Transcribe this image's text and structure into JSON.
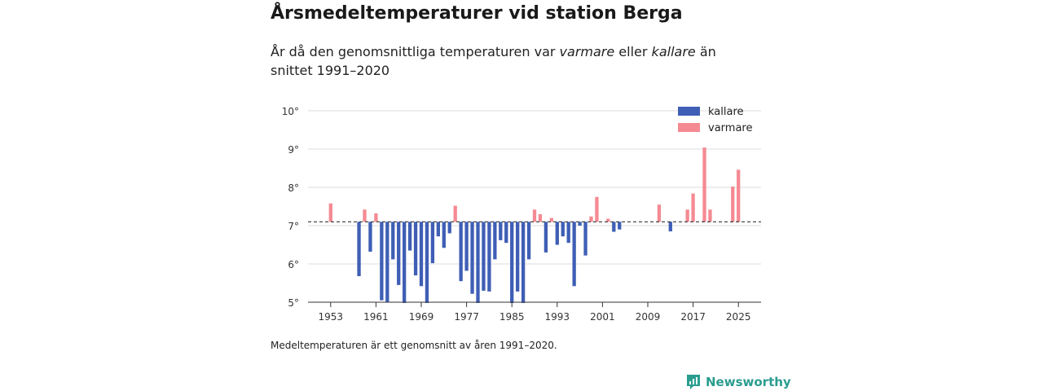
{
  "title": "Årsmedeltemperaturer vid station Berga",
  "subtitle": {
    "part1": "År då den genomsnittliga temperaturen var ",
    "warm_word": "varmare",
    "part2": " eller ",
    "cold_word": "kallare",
    "part3": " än snittet 1991–2020"
  },
  "footnote": "Medeltemperaturen är ett genomsnitt av åren 1991–2020.",
  "brand": {
    "name": "Newsworthy",
    "icon": "newsworthy-logo-icon",
    "color": "#2a9d8f"
  },
  "colors": {
    "colder": "#3f5fb5",
    "warmer": "#f58a93",
    "grid": "#dddddd",
    "axis": "#333333",
    "baseline": "#333333"
  },
  "chart_data": {
    "type": "bar",
    "title": "Årsmedeltemperaturer vid station Berga",
    "xlabel": "",
    "ylabel": "",
    "ylim": [
      5,
      10
    ],
    "xlim": [
      1949,
      2029
    ],
    "baseline": 7.1,
    "baseline_style": "dashed",
    "yticks": [
      5,
      6,
      7,
      8,
      9,
      10
    ],
    "ytick_labels": [
      "5°",
      "6°",
      "7°",
      "8°",
      "9°",
      "10°"
    ],
    "xticks": [
      1953,
      1961,
      1969,
      1977,
      1985,
      1993,
      2001,
      2009,
      2017,
      2025
    ],
    "xtick_labels": [
      "1953",
      "1961",
      "1969",
      "1977",
      "1985",
      "1993",
      "2001",
      "2009",
      "2017",
      "2025"
    ],
    "legend": {
      "position": "top-right",
      "entries": [
        {
          "label": "kallare",
          "series": "colder"
        },
        {
          "label": "varmare",
          "series": "warmer"
        }
      ]
    },
    "series": [
      {
        "name": "kallare",
        "key": "colder",
        "points": [
          {
            "x": 1958,
            "y": 5.68
          },
          {
            "x": 1960,
            "y": 6.32
          },
          {
            "x": 1962,
            "y": 5.05
          },
          {
            "x": 1963,
            "y": 5.0
          },
          {
            "x": 1964,
            "y": 6.12
          },
          {
            "x": 1965,
            "y": 5.45
          },
          {
            "x": 1966,
            "y": 4.98
          },
          {
            "x": 1967,
            "y": 6.35
          },
          {
            "x": 1968,
            "y": 5.7
          },
          {
            "x": 1969,
            "y": 5.42
          },
          {
            "x": 1970,
            "y": 4.98
          },
          {
            "x": 1971,
            "y": 6.02
          },
          {
            "x": 1972,
            "y": 6.72
          },
          {
            "x": 1973,
            "y": 6.42
          },
          {
            "x": 1974,
            "y": 6.8
          },
          {
            "x": 1976,
            "y": 5.55
          },
          {
            "x": 1977,
            "y": 5.82
          },
          {
            "x": 1978,
            "y": 5.22
          },
          {
            "x": 1979,
            "y": 4.98
          },
          {
            "x": 1980,
            "y": 5.3
          },
          {
            "x": 1981,
            "y": 5.28
          },
          {
            "x": 1982,
            "y": 6.12
          },
          {
            "x": 1983,
            "y": 6.62
          },
          {
            "x": 1984,
            "y": 6.55
          },
          {
            "x": 1985,
            "y": 4.98
          },
          {
            "x": 1986,
            "y": 5.28
          },
          {
            "x": 1987,
            "y": 4.98
          },
          {
            "x": 1988,
            "y": 6.12
          },
          {
            "x": 1991,
            "y": 6.3
          },
          {
            "x": 1993,
            "y": 6.5
          },
          {
            "x": 1994,
            "y": 6.72
          },
          {
            "x": 1995,
            "y": 6.55
          },
          {
            "x": 1996,
            "y": 5.42
          },
          {
            "x": 1997,
            "y": 7.0
          },
          {
            "x": 1998,
            "y": 6.22
          },
          {
            "x": 2003,
            "y": 6.84
          },
          {
            "x": 2004,
            "y": 6.9
          },
          {
            "x": 2013,
            "y": 6.85
          }
        ]
      },
      {
        "name": "varmare",
        "key": "warmer",
        "points": [
          {
            "x": 1953,
            "y": 7.58
          },
          {
            "x": 1959,
            "y": 7.42
          },
          {
            "x": 1961,
            "y": 7.32
          },
          {
            "x": 1975,
            "y": 7.52
          },
          {
            "x": 1989,
            "y": 7.42
          },
          {
            "x": 1990,
            "y": 7.3
          },
          {
            "x": 1992,
            "y": 7.2
          },
          {
            "x": 1999,
            "y": 7.24
          },
          {
            "x": 2000,
            "y": 7.75
          },
          {
            "x": 2002,
            "y": 7.18
          },
          {
            "x": 2011,
            "y": 7.55
          },
          {
            "x": 2016,
            "y": 7.42
          },
          {
            "x": 2017,
            "y": 7.84
          },
          {
            "x": 2019,
            "y": 9.04
          },
          {
            "x": 2020,
            "y": 7.42
          },
          {
            "x": 2024,
            "y": 8.02
          },
          {
            "x": 2025,
            "y": 8.46
          }
        ]
      }
    ]
  }
}
